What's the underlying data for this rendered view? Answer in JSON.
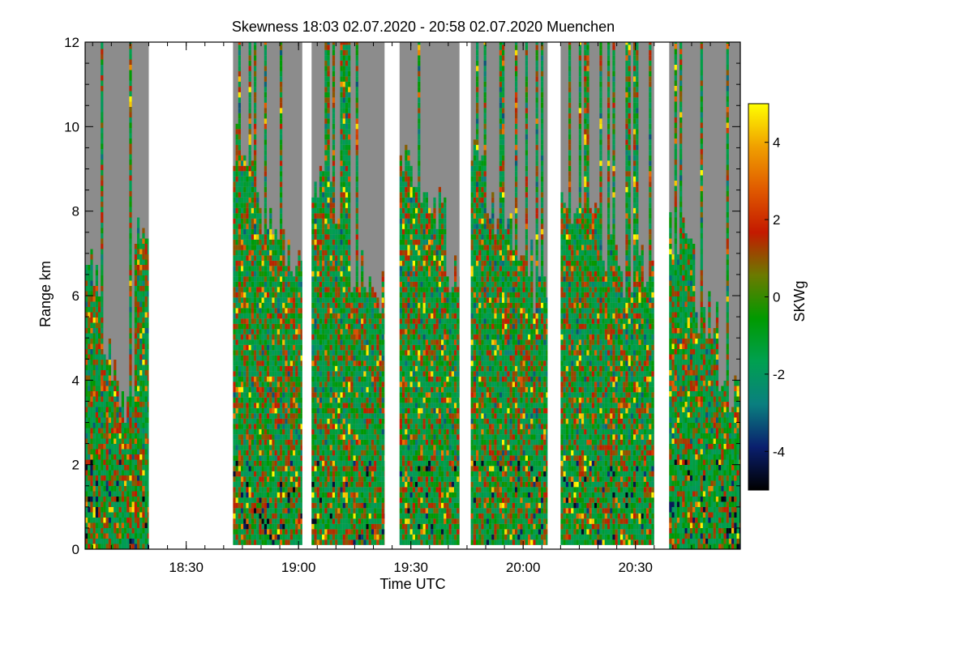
{
  "chart_data": {
    "type": "heatmap",
    "title": "Skewness   18:03 02.07.2020 - 20:58 02.07.2020 Muenchen",
    "xlabel": "Time UTC",
    "ylabel": "Range km",
    "colorbar_label": "SKWg",
    "xlim_minutes_utc": [
      1083,
      1258
    ],
    "ylim_km": [
      0,
      12
    ],
    "x_ticks": [
      {
        "label": "18:30",
        "minute": 1110
      },
      {
        "label": "19:00",
        "minute": 1140
      },
      {
        "label": "19:30",
        "minute": 1170
      },
      {
        "label": "20:00",
        "minute": 1200
      },
      {
        "label": "20:30",
        "minute": 1230
      }
    ],
    "y_ticks": [
      0,
      2,
      4,
      6,
      8,
      10,
      12
    ],
    "colorbar_range": [
      -5,
      5
    ],
    "colorbar_ticks": [
      -4,
      -2,
      0,
      2,
      4
    ],
    "colorscale": [
      "#000000",
      "#0a1f6e",
      "#0a7f7f",
      "#00a050",
      "#009a00",
      "#6b7a00",
      "#c41a00",
      "#e05a00",
      "#f0a000",
      "#ffff00"
    ],
    "no_signal_color": "#8c8c8c",
    "data_segments_minutes": [
      [
        1083,
        1100
      ],
      [
        1122.5,
        1141
      ],
      [
        1143.5,
        1163
      ],
      [
        1167,
        1183
      ],
      [
        1186,
        1206.5
      ],
      [
        1210,
        1235
      ],
      [
        1239,
        1258
      ]
    ],
    "segment_min_range_km": [
      0,
      0.1,
      0.1,
      0.1,
      0.1,
      0.1,
      0
    ],
    "segment_signal_top_km": [
      [
        6.5,
        4.5,
        3.5,
        7.5
      ],
      [
        9.5,
        8.5,
        7.5,
        7.0,
        6.8
      ],
      [
        8.5,
        7.5,
        6.5,
        6.0
      ],
      [
        9.0,
        8.5,
        8.0,
        6.5
      ],
      [
        9.0,
        8.0,
        7.5,
        7.0,
        6.0
      ],
      [
        8.0,
        7.5,
        7.0,
        6.5,
        6.5
      ],
      [
        7.5,
        5.5,
        3.5
      ]
    ],
    "colorbar_ticks_note": ""
  }
}
